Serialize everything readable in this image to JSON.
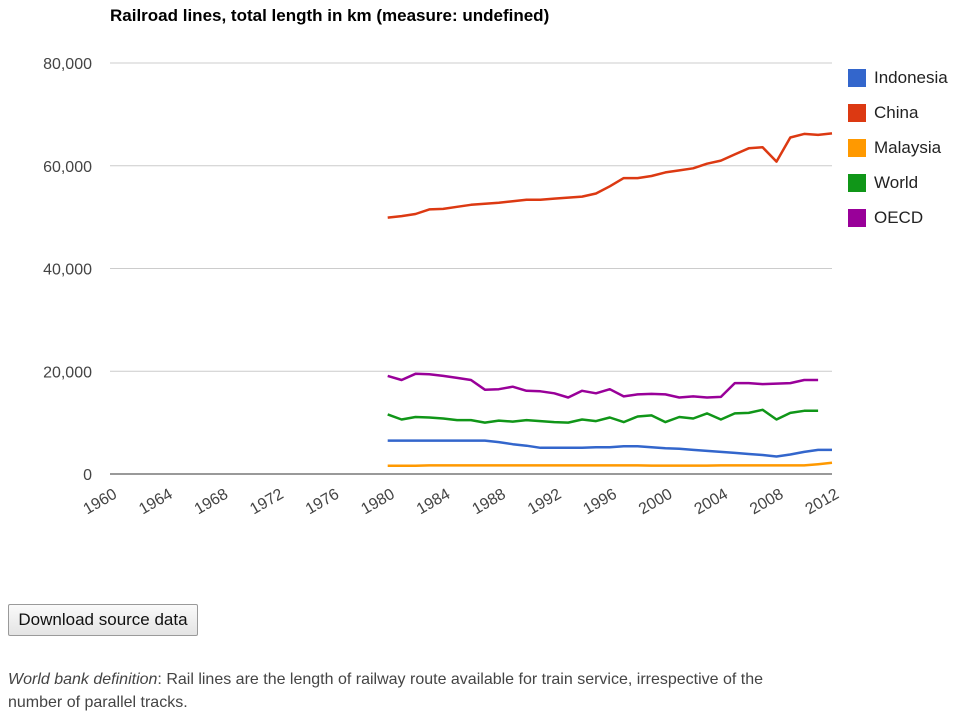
{
  "chart_data": {
    "type": "line",
    "title": "Railroad lines, total length in km (measure: undefined)",
    "xlabel": "",
    "ylabel": "",
    "x_ticks": [
      "1960",
      "1964",
      "1968",
      "1972",
      "1976",
      "1980",
      "1984",
      "1988",
      "1992",
      "1996",
      "2000",
      "2004",
      "2008",
      "2012"
    ],
    "xlim": [
      1960,
      2012
    ],
    "ylim": [
      0,
      80000
    ],
    "y_ticks": [
      0,
      20000,
      40000,
      60000,
      80000
    ],
    "y_tick_labels": [
      "0",
      "20,000",
      "40,000",
      "60,000",
      "80,000"
    ],
    "grid": true,
    "legend_position": "right",
    "series": [
      {
        "name": "Indonesia",
        "color": "#3366cc",
        "x": [
          1980,
          1981,
          1982,
          1983,
          1984,
          1985,
          1986,
          1987,
          1988,
          1989,
          1990,
          1991,
          1992,
          1993,
          1994,
          1995,
          1996,
          1997,
          1998,
          1999,
          2000,
          2001,
          2002,
          2003,
          2004,
          2005,
          2006,
          2007,
          2008,
          2009,
          2010,
          2011,
          2012
        ],
        "values": [
          6500,
          6500,
          6500,
          6500,
          6500,
          6500,
          6500,
          6500,
          6200,
          5800,
          5500,
          5100,
          5100,
          5100,
          5100,
          5200,
          5200,
          5400,
          5400,
          5200,
          5000,
          4900,
          4700,
          4500,
          4300,
          4100,
          3900,
          3700,
          3400,
          3800,
          4300,
          4700,
          4700
        ]
      },
      {
        "name": "China",
        "color": "#dc3912",
        "x": [
          1980,
          1981,
          1982,
          1983,
          1984,
          1985,
          1986,
          1987,
          1988,
          1989,
          1990,
          1991,
          1992,
          1993,
          1994,
          1995,
          1996,
          1997,
          1998,
          1999,
          2000,
          2001,
          2002,
          2003,
          2004,
          2005,
          2006,
          2007,
          2008,
          2009,
          2010,
          2011,
          2012
        ],
        "values": [
          49900,
          50200,
          50600,
          51500,
          51600,
          52000,
          52400,
          52600,
          52800,
          53100,
          53400,
          53400,
          53600,
          53800,
          54000,
          54600,
          56000,
          57600,
          57600,
          58000,
          58700,
          59100,
          59500,
          60400,
          61000,
          62200,
          63400,
          63600,
          60800,
          65500,
          66200,
          66000,
          66300
        ]
      },
      {
        "name": "Malaysia",
        "color": "#ff9900",
        "x": [
          1980,
          1981,
          1982,
          1983,
          1984,
          1985,
          1986,
          1987,
          1988,
          1989,
          1990,
          1991,
          1992,
          1993,
          1994,
          1995,
          1996,
          1997,
          1998,
          1999,
          2000,
          2001,
          2002,
          2003,
          2004,
          2005,
          2006,
          2007,
          2008,
          2009,
          2010,
          2011,
          2012
        ],
        "values": [
          1600,
          1600,
          1600,
          1670,
          1670,
          1670,
          1670,
          1670,
          1670,
          1670,
          1670,
          1670,
          1670,
          1670,
          1670,
          1670,
          1670,
          1670,
          1670,
          1640,
          1640,
          1640,
          1640,
          1640,
          1670,
          1670,
          1670,
          1670,
          1670,
          1670,
          1670,
          1900,
          2200
        ]
      },
      {
        "name": "World",
        "color": "#109618",
        "x": [
          1980,
          1981,
          1982,
          1983,
          1984,
          1985,
          1986,
          1987,
          1988,
          1989,
          1990,
          1991,
          1992,
          1993,
          1994,
          1995,
          1996,
          1997,
          1998,
          1999,
          2000,
          2001,
          2002,
          2003,
          2004,
          2005,
          2006,
          2007,
          2008,
          2009,
          2010,
          2011,
          2012
        ],
        "values": [
          11600,
          10600,
          11100,
          11000,
          10800,
          10500,
          10500,
          10000,
          10400,
          10200,
          10500,
          10300,
          10100,
          10000,
          10600,
          10300,
          11000,
          10100,
          11200,
          11400,
          10100,
          11100,
          10800,
          11800,
          10600,
          11800,
          11900,
          12500,
          10600,
          11900,
          12300,
          12300,
          null
        ]
      },
      {
        "name": "OECD",
        "color": "#990099",
        "x": [
          1980,
          1981,
          1982,
          1983,
          1984,
          1985,
          1986,
          1987,
          1988,
          1989,
          1990,
          1991,
          1992,
          1993,
          1994,
          1995,
          1996,
          1997,
          1998,
          1999,
          2000,
          2001,
          2002,
          2003,
          2004,
          2005,
          2006,
          2007,
          2008,
          2009,
          2010,
          2011,
          2012
        ],
        "values": [
          19100,
          18300,
          19500,
          19400,
          19100,
          18700,
          18300,
          16400,
          16500,
          17000,
          16200,
          16100,
          15700,
          14900,
          16200,
          15700,
          16500,
          15100,
          15500,
          15600,
          15500,
          14900,
          15100,
          14900,
          15000,
          17700,
          17700,
          17500,
          17600,
          17700,
          18300,
          18300,
          null
        ]
      }
    ]
  },
  "controls": {
    "download_label": "Download source data"
  },
  "footer": {
    "definition_label": "World bank definition",
    "definition_text": ": Rail lines are the length of railway route available for train service, irrespective of the number of parallel tracks."
  }
}
